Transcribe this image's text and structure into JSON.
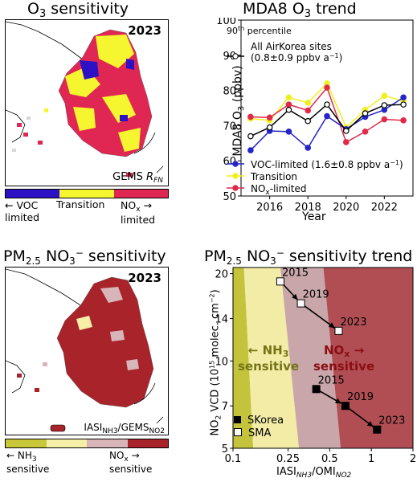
{
  "panel_a": {
    "title_pre": "O",
    "title_sub": "3",
    "title_post": " sensitivity",
    "year": "2023",
    "gems_label": "GEMS",
    "rfn_label": "R",
    "rfn_sub": "FN",
    "colorbar": {
      "colors": [
        "#2c12c4",
        "#f6f630",
        "#e02754"
      ],
      "left_label": "← VOC\nlimited",
      "center_label": "Transition",
      "right_label": "NO",
      "right_sub": "x",
      "right_post": " →\nlimited"
    }
  },
  "panel_b": {
    "title_pre": "MDA8 O",
    "title_sub": "3",
    "title_post": " trend",
    "percentile_pre": "90",
    "percentile_sup": "th",
    "percentile_post": " percentile",
    "legend_all_1": "All AirKorea sites",
    "legend_all_2": "(0.8±0.9 ppbv a",
    "legend_all_sup": "−1",
    "legend_all_post": ")",
    "legend_voc": "VOC-limited (1.6±0.8 ppbv a",
    "legend_voc_sup": "−1",
    "legend_voc_post": ")",
    "legend_trans": "Transition",
    "legend_nox_pre": "NO",
    "legend_nox_sub": "x",
    "legend_nox_post": "-limited",
    "ylabel_pre": "MDA8 O",
    "ylabel_sub": "3",
    "ylabel_post": " (ppbv)",
    "xlabel": "Year",
    "yticks": [
      "50",
      "60",
      "70",
      "80",
      "90",
      "100"
    ],
    "xticks": [
      "2016",
      "2018",
      "2020",
      "2022"
    ]
  },
  "panel_c": {
    "title_pre": "PM",
    "title_sub": "2.5",
    "title_mid": " NO",
    "title_sub2": "3",
    "title_sup": "−",
    "title_post": " sensitivity",
    "year": "2023",
    "iasi_label": "IASI",
    "iasi_sub": "NH3",
    "gems_label": "/GEMS",
    "gems_sub": "NO2",
    "colorbar": {
      "colors": [
        "#c8c83a",
        "#f5efa8",
        "#d7b5b8",
        "#a8232a"
      ],
      "left_pre": "← NH",
      "left_sub": "3",
      "left_post": "sensitive",
      "right_pre": "NO",
      "right_sub": "x",
      "right_post1": " →",
      "right_post2": "sensitive"
    }
  },
  "panel_d": {
    "title_pre": "PM",
    "title_sub": "2.5",
    "title_mid": " NO",
    "title_sub2": "3",
    "title_sup": "−",
    "title_post": " sensitivity trend",
    "region_left_pre": "← NH",
    "region_left_sub": "3",
    "region_left_post": "sensitive",
    "region_right_pre": "NO",
    "region_right_sub": "x",
    "region_right_post": " →",
    "region_right_line2": "sensitive",
    "legend_skorea": "SKorea",
    "legend_sma": "SMA",
    "ylabel": "NO2 VCD (10^15 molec. cm^−2)",
    "xlabel": "IASI_NH3/OMI_NO2",
    "xticks": [
      "0.1",
      "0.25",
      "0.5",
      "1",
      "2"
    ],
    "yticks": [
      "5",
      "7",
      "10",
      "14",
      "20"
    ],
    "region_colors": [
      "#c4c43c",
      "#f2eca6",
      "#c9a6a9",
      "#b04e54"
    ]
  },
  "chart_data": [
    {
      "type": "line",
      "title": "MDA8 O3 trend",
      "xlabel": "Year",
      "ylabel": "MDA8 O3 (ppbv)",
      "ylim": [
        50,
        100
      ],
      "xlim": [
        2014.5,
        2023.5
      ],
      "grid": false,
      "legend_placement": "top-left / bottom-left",
      "x": [
        2015,
        2016,
        2017,
        2018,
        2019,
        2020,
        2021,
        2022,
        2023
      ],
      "series": [
        {
          "name": "All AirKorea sites (0.8±0.9 ppbv a−1)",
          "color": "#000000",
          "marker": "open-circle",
          "values": [
            67.0,
            69.5,
            74.5,
            71.3,
            76.0,
            68.5,
            73.5,
            75.8,
            76.0
          ]
        },
        {
          "name": "VOC-limited (1.6±0.8 ppbv a−1)",
          "color": "#2424c8",
          "marker": "circle",
          "values": [
            63.0,
            68.5,
            68.3,
            63.7,
            72.7,
            69.0,
            72.5,
            74.5,
            78.0
          ]
        },
        {
          "name": "Transition",
          "color": "#f0f020",
          "marker": "circle",
          "values": [
            72.0,
            71.5,
            78.0,
            76.5,
            82.0,
            69.5,
            74.5,
            78.5,
            77.0
          ]
        },
        {
          "name": "NOx-limited",
          "color": "#e02a4a",
          "marker": "circle",
          "values": [
            72.5,
            72.3,
            76.0,
            74.3,
            80.8,
            65.3,
            68.3,
            71.8,
            71.5
          ]
        }
      ]
    },
    {
      "type": "scatter",
      "title": "PM2.5 NO3− sensitivity trend",
      "xlabel": "IASI NH3/OMI NO2",
      "ylabel": "NO2 VCD (10^15 molec. cm−2)",
      "xscale": "log",
      "yscale": "log",
      "xlim": [
        0.1,
        2
      ],
      "ylim": [
        5,
        21
      ],
      "grid": false,
      "legend_placement": "bottom-left",
      "series": [
        {
          "name": "SKorea",
          "marker": "filled-square",
          "points": [
            {
              "x": 0.4,
              "y": 8.0,
              "label": "2015"
            },
            {
              "x": 0.65,
              "y": 7.0,
              "label": "2019"
            },
            {
              "x": 1.1,
              "y": 5.8,
              "label": "2023"
            }
          ]
        },
        {
          "name": "SMA",
          "marker": "open-square",
          "points": [
            {
              "x": 0.22,
              "y": 18.8,
              "label": "2015"
            },
            {
              "x": 0.31,
              "y": 15.8,
              "label": "2019"
            },
            {
              "x": 0.58,
              "y": 12.7,
              "label": "2023"
            }
          ]
        }
      ],
      "regions": [
        "NH3 sensitive",
        "transition",
        "transition",
        "NOx sensitive"
      ]
    }
  ]
}
